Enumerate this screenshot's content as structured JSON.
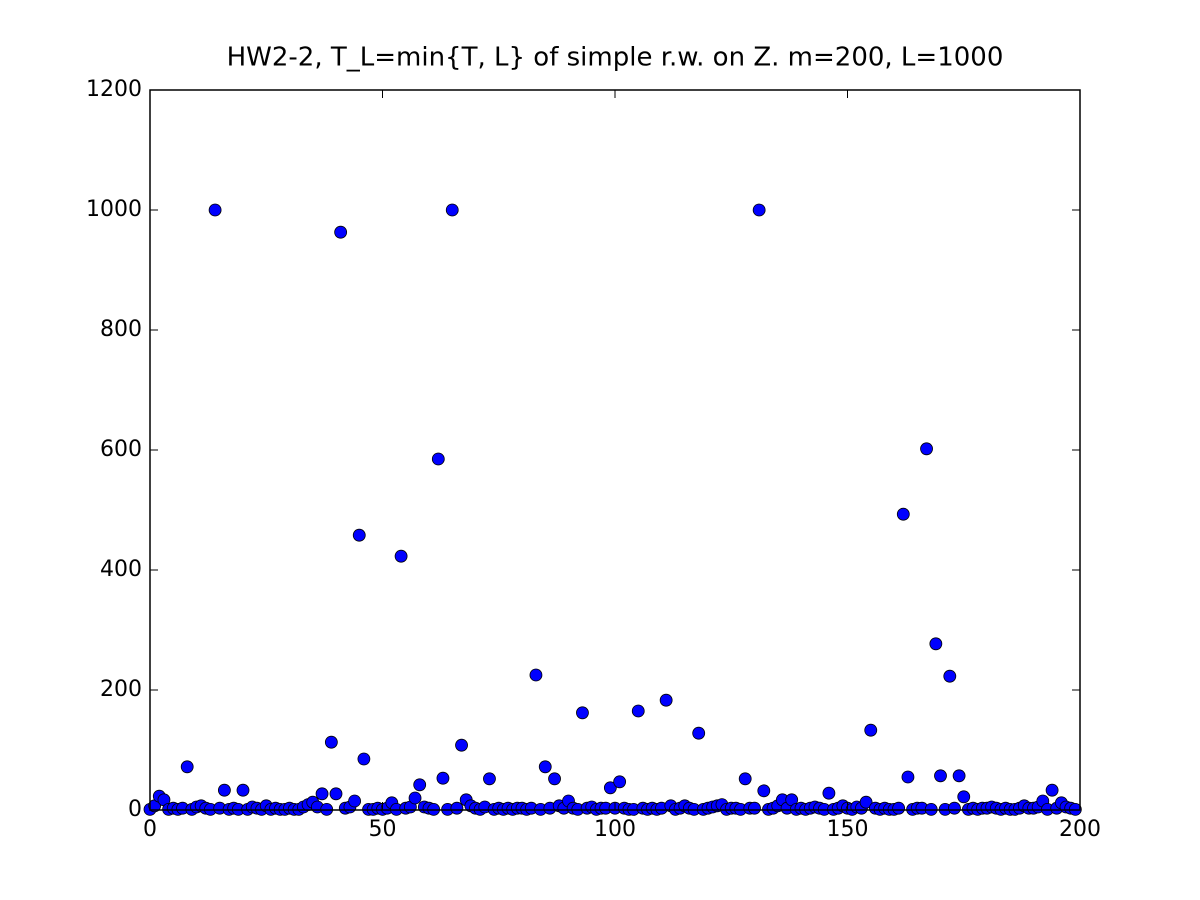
{
  "chart_data": {
    "type": "scatter",
    "title": "HW2-2, T_L=min{T, L} of simple r.w. on Z. m=200, L=1000",
    "x": [
      0,
      1,
      2,
      3,
      4,
      5,
      6,
      7,
      8,
      9,
      10,
      11,
      12,
      13,
      14,
      15,
      16,
      17,
      18,
      19,
      20,
      21,
      22,
      23,
      24,
      25,
      26,
      27,
      28,
      29,
      30,
      31,
      32,
      33,
      34,
      35,
      36,
      37,
      38,
      39,
      40,
      41,
      42,
      43,
      44,
      45,
      46,
      47,
      48,
      49,
      50,
      51,
      52,
      53,
      54,
      55,
      56,
      57,
      58,
      59,
      60,
      61,
      62,
      63,
      64,
      65,
      66,
      67,
      68,
      69,
      70,
      71,
      72,
      73,
      74,
      75,
      76,
      77,
      78,
      79,
      80,
      81,
      82,
      83,
      84,
      85,
      86,
      87,
      88,
      89,
      90,
      91,
      92,
      93,
      94,
      95,
      96,
      97,
      98,
      99,
      100,
      101,
      102,
      103,
      104,
      105,
      106,
      107,
      108,
      109,
      110,
      111,
      112,
      113,
      114,
      115,
      116,
      117,
      118,
      119,
      120,
      121,
      122,
      123,
      124,
      125,
      126,
      127,
      128,
      129,
      130,
      131,
      132,
      133,
      134,
      135,
      136,
      137,
      138,
      139,
      140,
      141,
      142,
      143,
      144,
      145,
      146,
      147,
      148,
      149,
      150,
      151,
      152,
      153,
      154,
      155,
      156,
      157,
      158,
      159,
      160,
      161,
      162,
      163,
      164,
      165,
      166,
      167,
      168,
      169,
      170,
      171,
      172,
      173,
      174,
      175,
      176,
      177,
      178,
      179,
      180,
      181,
      182,
      183,
      184,
      185,
      186,
      187,
      188,
      189,
      190,
      191,
      192,
      193,
      194,
      195,
      196,
      197,
      198,
      199
    ],
    "values": [
      1,
      7,
      23,
      17,
      1,
      3,
      1,
      3,
      72,
      1,
      5,
      7,
      3,
      1,
      1000,
      3,
      33,
      1,
      3,
      1,
      33,
      1,
      5,
      3,
      1,
      7,
      1,
      3,
      1,
      1,
      3,
      1,
      1,
      5,
      9,
      13,
      5,
      27,
      1,
      113,
      27,
      963,
      3,
      5,
      15,
      458,
      85,
      1,
      1,
      3,
      1,
      3,
      12,
      1,
      423,
      3,
      5,
      20,
      42,
      5,
      3,
      1,
      585,
      53,
      1,
      1000,
      3,
      108,
      17,
      7,
      3,
      1,
      5,
      52,
      1,
      3,
      1,
      3,
      1,
      3,
      3,
      1,
      3,
      225,
      1,
      72,
      3,
      52,
      7,
      3,
      15,
      3,
      1,
      162,
      3,
      5,
      1,
      3,
      3,
      37,
      3,
      47,
      3,
      1,
      1,
      165,
      3,
      1,
      3,
      1,
      3,
      183,
      7,
      1,
      3,
      7,
      3,
      1,
      128,
      1,
      3,
      5,
      7,
      9,
      1,
      3,
      3,
      1,
      52,
      3,
      3,
      1000,
      32,
      1,
      3,
      7,
      17,
      3,
      17,
      1,
      3,
      1,
      3,
      5,
      3,
      1,
      28,
      1,
      3,
      7,
      3,
      1,
      5,
      3,
      13,
      133,
      3,
      1,
      3,
      1,
      1,
      3,
      493,
      55,
      1,
      3,
      3,
      602,
      1,
      277,
      57,
      1,
      223,
      3,
      57,
      22,
      1,
      3,
      1,
      3,
      3,
      5,
      3,
      1,
      3,
      1,
      1,
      3,
      7,
      3,
      3,
      5,
      15,
      1,
      33,
      3,
      12,
      5,
      3,
      1
    ],
    "color": "#0000ff",
    "xlim": [
      0,
      200
    ],
    "xticks": [
      0,
      50,
      100,
      150,
      200
    ],
    "ylim": [
      0,
      1200
    ],
    "yticks": [
      0,
      200,
      400,
      600,
      800,
      1000,
      1200
    ]
  }
}
